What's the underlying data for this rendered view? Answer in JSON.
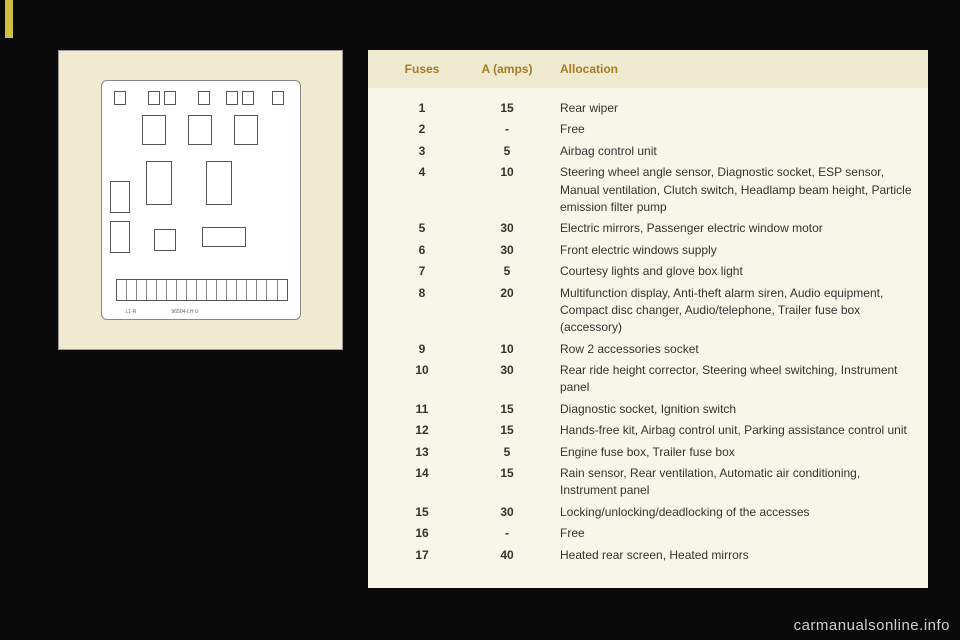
{
  "table": {
    "headers": {
      "fuses": "Fuses",
      "amps": "A (amps)",
      "alloc": "Allocation"
    },
    "rows": [
      {
        "fuse": "1",
        "amps": "15",
        "alloc": "Rear wiper"
      },
      {
        "fuse": "2",
        "amps": "-",
        "alloc": "Free"
      },
      {
        "fuse": "3",
        "amps": "5",
        "alloc": "Airbag control unit"
      },
      {
        "fuse": "4",
        "amps": "10",
        "alloc": "Steering wheel angle sensor, Diagnostic socket, ESP sensor, Manual ventilation, Clutch switch, Headlamp beam height, Particle emission filter pump"
      },
      {
        "fuse": "5",
        "amps": "30",
        "alloc": "Electric mirrors, Passenger electric window motor"
      },
      {
        "fuse": "6",
        "amps": "30",
        "alloc": "Front electric windows supply"
      },
      {
        "fuse": "7",
        "amps": "5",
        "alloc": "Courtesy lights and glove box light"
      },
      {
        "fuse": "8",
        "amps": "20",
        "alloc": "Multifunction display, Anti-theft alarm siren, Audio equipment, Compact disc changer, Audio/telephone, Trailer fuse box (accessory)"
      },
      {
        "fuse": "9",
        "amps": "10",
        "alloc": "Row 2 accessories socket"
      },
      {
        "fuse": "10",
        "amps": "30",
        "alloc": "Rear ride height corrector, Steering wheel switching, Instrument panel"
      },
      {
        "fuse": "11",
        "amps": "15",
        "alloc": "Diagnostic socket, Ignition switch"
      },
      {
        "fuse": "12",
        "amps": "15",
        "alloc": "Hands-free kit, Airbag control unit, Parking assistance control unit"
      },
      {
        "fuse": "13",
        "amps": "5",
        "alloc": "Engine fuse box, Trailer fuse box"
      },
      {
        "fuse": "14",
        "amps": "15",
        "alloc": "Rain sensor, Rear ventilation, Automatic air conditioning, Instrument panel"
      },
      {
        "fuse": "15",
        "amps": "30",
        "alloc": "Locking/unlocking/deadlocking of the accesses"
      },
      {
        "fuse": "16",
        "amps": "-",
        "alloc": "Free"
      },
      {
        "fuse": "17",
        "amps": "40",
        "alloc": "Heated rear screen, Heated mirrors"
      }
    ]
  },
  "colors": {
    "page_bg": "#0a0a0a",
    "panel_bg": "#f0ead0",
    "table_head_bg": "#eeeacf",
    "table_body_bg": "#f8f6e8",
    "header_text": "#a57b2a",
    "gold_bar": "#d0c040"
  },
  "watermark": "carmanualsonline.info"
}
